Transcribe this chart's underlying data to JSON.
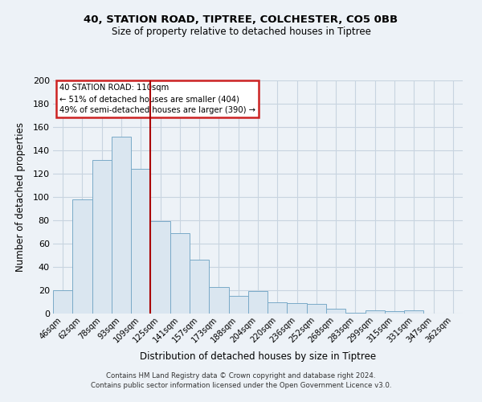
{
  "title": "40, STATION ROAD, TIPTREE, COLCHESTER, CO5 0BB",
  "subtitle": "Size of property relative to detached houses in Tiptree",
  "xlabel": "Distribution of detached houses by size in Tiptree",
  "ylabel": "Number of detached properties",
  "categories": [
    "46sqm",
    "62sqm",
    "78sqm",
    "93sqm",
    "109sqm",
    "125sqm",
    "141sqm",
    "157sqm",
    "173sqm",
    "188sqm",
    "204sqm",
    "220sqm",
    "236sqm",
    "252sqm",
    "268sqm",
    "283sqm",
    "299sqm",
    "315sqm",
    "331sqm",
    "347sqm",
    "362sqm"
  ],
  "values": [
    20,
    98,
    132,
    152,
    124,
    79,
    69,
    46,
    23,
    15,
    19,
    10,
    9,
    8,
    4,
    1,
    3,
    2,
    3,
    0,
    0
  ],
  "bar_color": "#dae6f0",
  "bar_edge_color": "#7aaac8",
  "vline_index": 4,
  "vline_color": "#aa0000",
  "annotation_title": "40 STATION ROAD: 110sqm",
  "annotation_line1": "← 51% of detached houses are smaller (404)",
  "annotation_line2": "49% of semi-detached houses are larger (390) →",
  "annotation_box_facecolor": "#ffffff",
  "annotation_box_edgecolor": "#cc2222",
  "ylim": [
    0,
    200
  ],
  "yticks": [
    0,
    20,
    40,
    60,
    80,
    100,
    120,
    140,
    160,
    180,
    200
  ],
  "footer_line1": "Contains HM Land Registry data © Crown copyright and database right 2024.",
  "footer_line2": "Contains public sector information licensed under the Open Government Licence v3.0.",
  "fig_background": "#edf2f7",
  "grid_color": "#c8d4e0"
}
